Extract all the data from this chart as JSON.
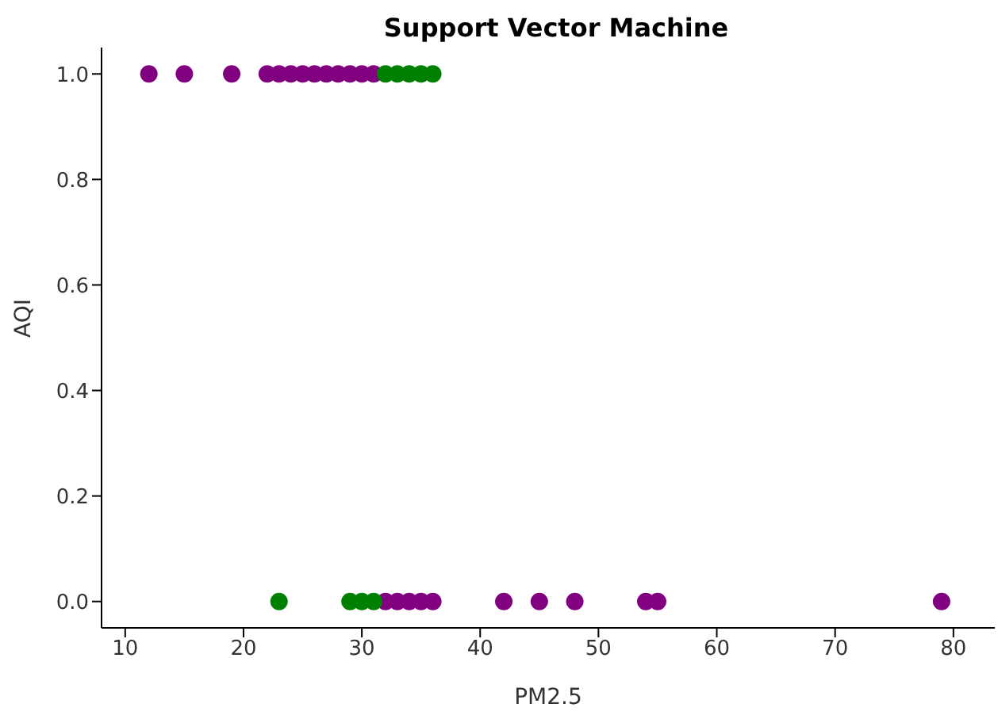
{
  "chart_data": {
    "type": "scatter",
    "title": "Support Vector Machine",
    "xlabel": "PM2.5",
    "ylabel": "AQI",
    "series": [
      {
        "color": "#800080",
        "x": [
          12,
          15,
          19,
          22,
          23,
          24,
          25,
          26,
          27,
          28,
          29,
          30,
          31,
          32,
          33,
          34,
          35,
          36,
          42,
          45,
          48,
          54,
          55,
          79
        ],
        "values": [
          1,
          1,
          1,
          1,
          1,
          1,
          1,
          1,
          1,
          1,
          1,
          1,
          1,
          0,
          0,
          0,
          0,
          0,
          0,
          0,
          0,
          0,
          0,
          0
        ]
      },
      {
        "color": "#008000",
        "x": [
          32,
          33,
          34,
          35,
          36,
          23,
          29,
          30,
          31
        ],
        "values": [
          1,
          1,
          1,
          1,
          1,
          0,
          0,
          0,
          0
        ]
      }
    ],
    "xlim": [
      8,
      83.5
    ],
    "xticks": [
      10,
      20,
      30,
      40,
      50,
      60,
      70,
      80
    ],
    "ylim": [
      -0.05,
      1.05
    ],
    "yticks": [
      {
        "value": 0,
        "label": "0.0"
      },
      {
        "value": 0.2,
        "label": "0.2"
      },
      {
        "value": 0.4,
        "label": "0.4"
      },
      {
        "value": 0.6,
        "label": "0.6"
      },
      {
        "value": 0.8,
        "label": "0.8"
      },
      {
        "value": 1,
        "label": "1.0"
      }
    ],
    "marker": "circle",
    "grid": false,
    "legend": false
  }
}
